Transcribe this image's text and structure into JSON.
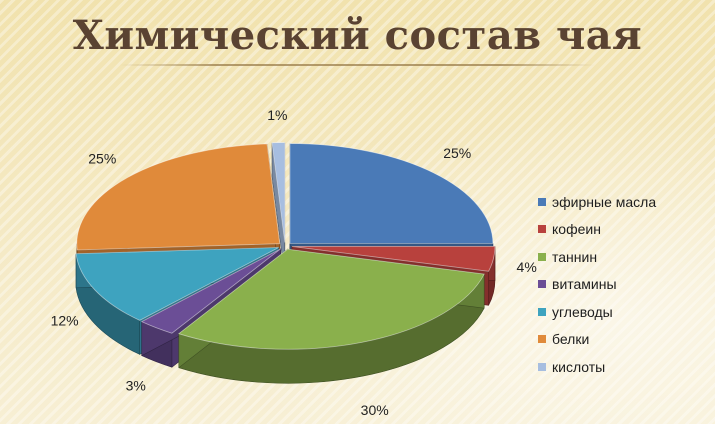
{
  "chart_data": {
    "type": "pie",
    "title": "Химический состав чая",
    "categories": [
      "эфирные масла",
      "кофеин",
      "таннин",
      "витамины",
      "углеводы",
      "белки",
      "кислоты"
    ],
    "values": [
      25,
      4,
      30,
      3,
      12,
      25,
      1
    ],
    "labels": [
      "25%",
      "4%",
      "30%",
      "3%",
      "12%",
      "25%",
      "1%"
    ],
    "colors": [
      "#4a7ab7",
      "#b8413d",
      "#8ab04c",
      "#6b4e96",
      "#3ea3bf",
      "#e08a3a",
      "#a7bee0"
    ],
    "legend": "right",
    "style": "3d-exploded"
  }
}
